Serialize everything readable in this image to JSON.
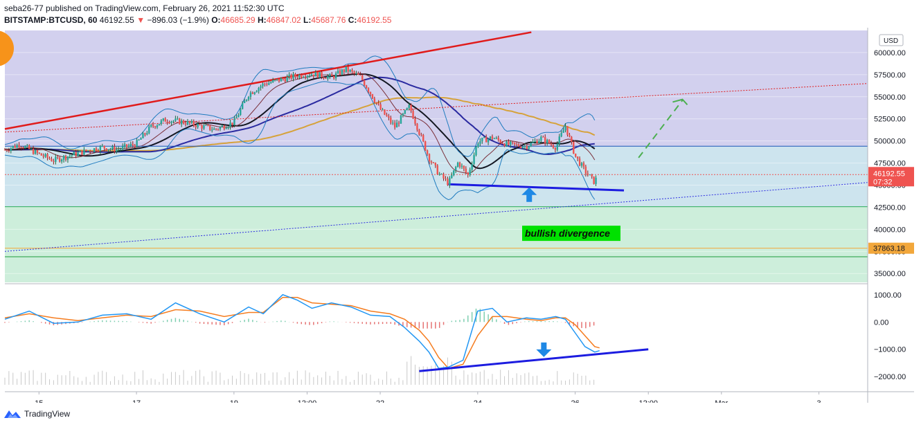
{
  "header": {
    "publish_line": "seba26-77 published on TradingView.com, February 26, 2021 11:52:30 UTC",
    "symbol": "BITSTAMP:BTCUSD, 60",
    "last": "46192.55",
    "change_arrow": "▼",
    "change": "−896.03 (−1.9%)",
    "open_label": "O:",
    "open": "46685.29",
    "high_label": "H:",
    "high": "46847.02",
    "low_label": "L:",
    "low": "45687.76",
    "close_label": "C:",
    "close": "46192.55"
  },
  "footer": {
    "brand": "TradingView"
  },
  "colors": {
    "up": "#26a69a",
    "down": "#ef5350",
    "zone_purple": "#d2d0ee",
    "zone_blue": "#cde4ee",
    "zone_green": "#cdeedb",
    "resistance": "#e01b1b",
    "support": "#1c1ce0",
    "macd": "#2196f3",
    "signal": "#f57c1f",
    "ma200": "#d6a23a",
    "ma_black": "#131722",
    "ma_navy": "#2a2aa0",
    "bollinger": "#1e7bbf",
    "arrow_blue": "#1e88e5",
    "dashed_green": "#4caf50",
    "label_green": "#00e100"
  },
  "chart_data": {
    "type": "line",
    "title": "BITSTAMP:BTCUSD, 60",
    "currency": "USD",
    "ylim": [
      34000,
      62500
    ],
    "price_ticks": [
      35000,
      37500,
      40000,
      42500,
      45000,
      47500,
      50000,
      52500,
      55000,
      57500,
      60000
    ],
    "price_tick_labels": [
      "35000.00",
      "37500.00",
      "40000.00",
      "42500.00",
      "45000.00",
      "47500.00",
      "50000.00",
      "52500.00",
      "55000.00",
      "57500.00",
      "60000.00"
    ],
    "x_tick_labels": [
      "15",
      "17",
      "19",
      "12:00",
      "22",
      "24",
      "26",
      "12:00",
      "Mar",
      "3"
    ],
    "x_tick_days": [
      15,
      17,
      19,
      20.5,
      22,
      24,
      26,
      27.5,
      29,
      31
    ],
    "x_range_days": [
      14.3,
      32.0
    ],
    "price_series": {
      "name": "BTCUSD",
      "x_days": [
        14.3,
        14.6,
        15.0,
        15.3,
        15.6,
        16.0,
        16.3,
        16.6,
        17.0,
        17.3,
        17.6,
        18.0,
        18.3,
        18.6,
        19.0,
        19.3,
        19.6,
        20.0,
        20.3,
        20.6,
        21.0,
        21.3,
        21.6,
        22.0,
        22.3,
        22.6,
        23.0,
        23.2,
        23.4,
        23.6,
        23.8,
        24.0,
        24.3,
        24.6,
        25.0,
        25.3,
        25.6,
        25.8,
        26.0,
        26.2,
        26.4,
        26.5
      ],
      "values": [
        49000,
        49600,
        48500,
        47800,
        48300,
        48900,
        49300,
        49000,
        49700,
        51600,
        52400,
        52100,
        51700,
        51300,
        52100,
        55300,
        56400,
        57000,
        57400,
        57600,
        57200,
        58100,
        57200,
        53600,
        51600,
        53900,
        48100,
        46300,
        45200,
        47600,
        46100,
        49900,
        50400,
        49600,
        49400,
        50300,
        49300,
        51700,
        48300,
        46600,
        45300,
        46700
      ]
    },
    "macd_ticks": [
      1000,
      0,
      -1000,
      -2000
    ],
    "macd_tick_labels": [
      "1000.00",
      "0.00",
      "−1000.00",
      "−2000.00"
    ],
    "macd_ylim": [
      -2300,
      1350
    ],
    "macd_series": {
      "x_days": [
        14.3,
        14.8,
        15.3,
        15.8,
        16.3,
        16.8,
        17.3,
        17.8,
        18.3,
        18.8,
        19.3,
        19.6,
        20.0,
        20.3,
        20.6,
        21.0,
        21.4,
        21.8,
        22.2,
        22.5,
        22.8,
        23.0,
        23.2,
        23.4,
        23.7,
        24.0,
        24.3,
        24.6,
        25.0,
        25.3,
        25.6,
        25.8,
        26.0,
        26.2,
        26.4,
        26.5
      ],
      "macd": [
        100,
        400,
        -50,
        0,
        250,
        300,
        100,
        700,
        300,
        0,
        550,
        300,
        1000,
        800,
        500,
        700,
        550,
        250,
        200,
        -200,
        -700,
        -1100,
        -1700,
        -1650,
        -1400,
        400,
        500,
        0,
        150,
        100,
        200,
        100,
        -400,
        -900,
        -1100,
        -1050
      ],
      "signal": [
        150,
        300,
        150,
        50,
        150,
        250,
        200,
        450,
        400,
        200,
        350,
        350,
        900,
        900,
        700,
        650,
        600,
        400,
        300,
        100,
        -300,
        -700,
        -1300,
        -1700,
        -1550,
        -500,
        200,
        200,
        100,
        50,
        150,
        150,
        -100,
        -500,
        -900,
        -950
      ]
    },
    "levels": [
      {
        "name": "blue horizontal",
        "value": 49400,
        "color": "#1a55b5"
      },
      {
        "name": "current price",
        "value": 46192.55,
        "color": "#ef5350"
      },
      {
        "name": "green upper",
        "value": 42550,
        "color": "#1aa34a"
      },
      {
        "name": "orange",
        "value": 37863.18,
        "color": "#f2a73b"
      },
      {
        "name": "green lower",
        "value": 36900,
        "color": "#1a9c3a"
      }
    ],
    "price_label": {
      "value": "46192.55",
      "timer": "07:32"
    },
    "level_label": {
      "value": "37863.18"
    },
    "annotations": [
      {
        "text": "bullish divergence",
        "type": "label"
      }
    ]
  }
}
